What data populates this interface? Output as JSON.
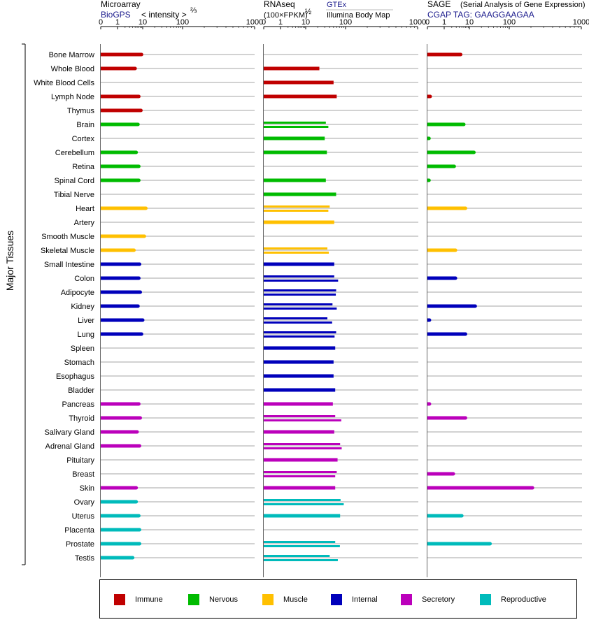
{
  "chart_data": {
    "type": "bar",
    "y_axis_label": "Major Tissues",
    "tissues": [
      "Bone Marrow",
      "Whole Blood",
      "White Blood Cells",
      "Lymph Node",
      "Thymus",
      "Brain",
      "Cortex",
      "Cerebellum",
      "Retina",
      "Spinal Cord",
      "Tibial Nerve",
      "Heart",
      "Artery",
      "Smooth Muscle",
      "Skeletal Muscle",
      "Small Intestine",
      "Colon",
      "Adipocyte",
      "Kidney",
      "Liver",
      "Lung",
      "Spleen",
      "Stomach",
      "Esophagus",
      "Bladder",
      "Pancreas",
      "Thyroid",
      "Salivary Gland",
      "Adrenal Gland",
      "Pituitary",
      "Breast",
      "Skin",
      "Ovary",
      "Uterus",
      "Placenta",
      "Prostate",
      "Testis"
    ],
    "categories": [
      {
        "name": "Immune",
        "color": "#c00000"
      },
      {
        "name": "Nervous",
        "color": "#00bb00"
      },
      {
        "name": "Muscle",
        "color": "#ffc000"
      },
      {
        "name": "Internal",
        "color": "#0000bb"
      },
      {
        "name": "Secretory",
        "color": "#bb00bb"
      },
      {
        "name": "Reproductive",
        "color": "#00bbbb"
      }
    ],
    "tissue_category": [
      0,
      0,
      0,
      0,
      0,
      1,
      1,
      1,
      1,
      1,
      1,
      2,
      2,
      2,
      2,
      3,
      3,
      3,
      3,
      3,
      3,
      3,
      3,
      3,
      3,
      4,
      4,
      4,
      4,
      4,
      4,
      4,
      5,
      5,
      5,
      5,
      5
    ],
    "x_ticks": [
      "0",
      "1",
      "10",
      "100",
      "1000"
    ],
    "panels": [
      {
        "title": "Microarray",
        "subtitle": "BioGPS",
        "unit_prefix": "< intensity >",
        "unit_power": "⅔",
        "values": [
          [
            9
          ],
          [
            5
          ],
          [],
          [
            7
          ],
          [
            8.5
          ],
          [
            6.5
          ],
          [],
          [
            5.5
          ],
          [
            7
          ],
          [
            7
          ],
          [],
          [
            12
          ],
          [],
          [
            11
          ],
          [
            4.5
          ],
          [
            7.5
          ],
          [
            7
          ],
          [
            8
          ],
          [
            6.5
          ],
          [
            10
          ],
          [
            9
          ],
          [],
          [],
          [],
          [],
          [
            7
          ],
          [
            8
          ],
          [
            6
          ],
          [
            7.5
          ],
          [],
          [],
          [
            5.5
          ],
          [
            5.5
          ],
          [
            7
          ],
          [
            7.5
          ],
          [
            7.5
          ],
          [
            4
          ]
        ]
      },
      {
        "title": "RNAseq",
        "unit_prefix": "(100×FPKM)",
        "unit_power": "½",
        "source_top": "GTEx",
        "source_bottom": "Illumina Body Map",
        "values": [
          [],
          [
            22
          ],
          [
            50
          ],
          [
            60
          ],
          [],
          [
            32,
            37
          ],
          [
            30
          ],
          [
            34
          ],
          [],
          [
            32
          ],
          [
            58
          ],
          [
            40,
            37
          ],
          [
            52
          ],
          [],
          [
            35,
            38
          ],
          [
            52
          ],
          [
            52,
            65
          ],
          [
            58,
            57
          ],
          [
            47,
            60
          ],
          [
            35,
            46
          ],
          [
            58,
            53
          ],
          [
            55
          ],
          [
            50
          ],
          [
            50
          ],
          [
            55
          ],
          [
            48
          ],
          [
            55,
            78
          ],
          [
            52
          ],
          [
            73,
            80
          ],
          [
            63
          ],
          [
            60,
            55
          ],
          [
            55
          ],
          [
            75,
            90
          ],
          [
            73
          ],
          [],
          [
            55,
            72
          ],
          [
            40,
            64
          ]
        ]
      },
      {
        "title": "SAGE",
        "title_note": "(Serial Analysis of Gene Expression)",
        "subtitle": "CGAP TAG: GAAGGAAGAA",
        "values": [
          [
            4.5
          ],
          [],
          [],
          [
            0.05
          ],
          [],
          [
            6
          ],
          [
            0.02
          ],
          [
            13
          ],
          [
            2.5
          ],
          [
            0.02
          ],
          [],
          [
            7
          ],
          [],
          [],
          [
            2.8
          ],
          [],
          [
            2.8
          ],
          [],
          [
            14
          ],
          [
            0.03
          ],
          [
            7
          ],
          [],
          [],
          [],
          [],
          [
            0.03
          ],
          [
            7
          ],
          [],
          [],
          [],
          [
            2.3
          ],
          [
            210
          ],
          [],
          [
            5
          ],
          [],
          [
            33
          ],
          []
        ]
      }
    ]
  },
  "legend": [
    {
      "label": "Immune",
      "color": "#c00000"
    },
    {
      "label": "Nervous",
      "color": "#00bb00"
    },
    {
      "label": "Muscle",
      "color": "#ffc000"
    },
    {
      "label": "Internal",
      "color": "#0000bb"
    },
    {
      "label": "Secretory",
      "color": "#bb00bb"
    },
    {
      "label": "Reproductive",
      "color": "#00bbbb"
    }
  ]
}
